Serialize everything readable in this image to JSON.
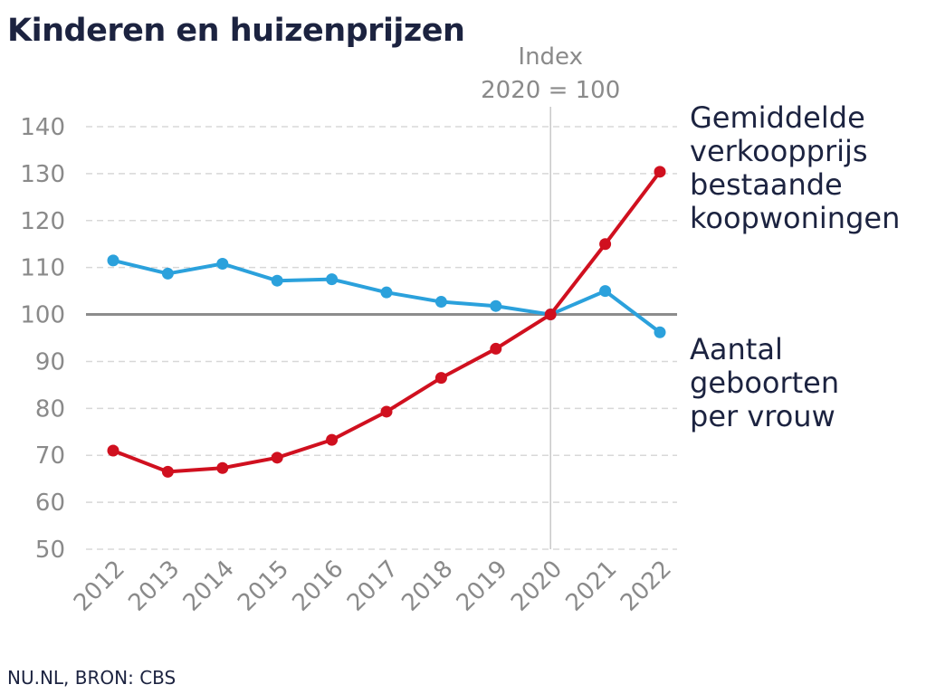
{
  "title": "Kinderen en huizenprijzen",
  "source": "NU.NL, BRON: CBS",
  "colors": {
    "price": "#d0101f",
    "births": "#2ba1dc",
    "text": "#1c2340",
    "axis": "#8a8a8a"
  },
  "chart_data": {
    "type": "line",
    "title": "Kinderen en huizenprijzen",
    "x": [
      "2012",
      "2013",
      "2014",
      "2015",
      "2016",
      "2017",
      "2018",
      "2019",
      "2020",
      "2021",
      "2022"
    ],
    "series": [
      {
        "name": "Gemiddelde verkoopprijs bestaande koopwoningen",
        "label_lines": [
          "Gemiddelde",
          "verkoopprijs",
          "bestaande",
          "koopwoningen"
        ],
        "color": "#d0101f",
        "values": [
          71,
          66.5,
          67.3,
          69.5,
          73.3,
          79.3,
          86.5,
          92.7,
          100,
          115,
          130.4
        ]
      },
      {
        "name": "Aantal geboorten per vrouw",
        "label_lines": [
          "Aantal",
          "geboorten",
          "per vrouw"
        ],
        "color": "#2ba1dc",
        "values": [
          111.5,
          108.7,
          110.8,
          107.2,
          107.5,
          104.7,
          102.7,
          101.8,
          100,
          105,
          96.2
        ]
      }
    ],
    "yticks": [
      50,
      60,
      70,
      80,
      90,
      100,
      110,
      120,
      130,
      140
    ],
    "ylim": [
      50,
      140
    ],
    "grid": true,
    "baseline": 100,
    "annotation": {
      "x": "2020",
      "lines": [
        "Index",
        "2020 = 100"
      ]
    }
  }
}
